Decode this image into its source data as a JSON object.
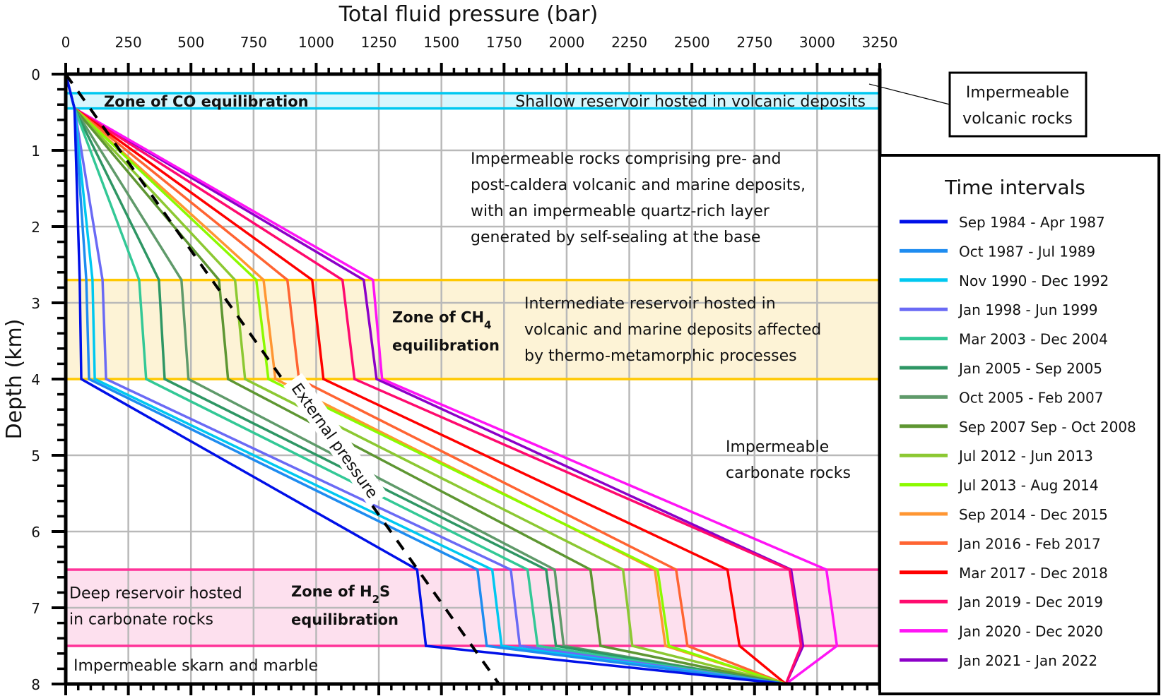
{
  "chart_data": {
    "type": "line",
    "title": "Total fluid pressure (bar)",
    "xlabel": "Total fluid pressure (bar)",
    "ylabel": "Depth (km)",
    "xlim": [
      0,
      3250
    ],
    "ylim": [
      0,
      8
    ],
    "y_inverted": true,
    "x_axis_position": "top",
    "grid": true,
    "x_ticks": [
      0,
      250,
      500,
      750,
      1000,
      1250,
      1500,
      1750,
      2000,
      2250,
      2500,
      2750,
      3000,
      3250
    ],
    "y_ticks": [
      0,
      1,
      2,
      3,
      4,
      5,
      6,
      7,
      8
    ],
    "zones": [
      {
        "name": "shallow",
        "from": 0.25,
        "to": 0.45,
        "color": "#00c8f0",
        "fill": "#d8f6fd",
        "label": "Zone of CO equilibration",
        "description": "Shallow reservoir hosted in volcanic deposits"
      },
      {
        "name": "intermediate",
        "from": 2.7,
        "to": 4.0,
        "color": "#ffc800",
        "fill": "#fdf3d6",
        "label_line1": "Zone of CH",
        "label_sub": "4",
        "label_line2": "equilibration",
        "description": [
          "Intermediate reservoir hosted in",
          "volcanic and marine deposits affected",
          "by thermo-metamorphic processes"
        ]
      },
      {
        "name": "deep",
        "from": 6.5,
        "to": 7.5,
        "color": "#ff3399",
        "fill": "#fde0ee",
        "label_line1": "Zone of H",
        "label_sub": "2",
        "label_line1_end": "S",
        "label_line2": "equilibration",
        "description": [
          "Deep reservoir hosted",
          "in carbonate rocks"
        ]
      }
    ],
    "annotations": {
      "impermeable_volcanic": [
        "Impermeable",
        "volcanic rocks"
      ],
      "impermeable_upper": [
        "Impermeable rocks comprising pre- and",
        "post-caldera volcanic and marine deposits,",
        "with an impermeable quartz-rich layer",
        "generated by self-sealing at the base"
      ],
      "impermeable_carbonate": [
        "Impermeable",
        "carbonate rocks"
      ],
      "impermeable_skarn": "Impermeable skarn and marble",
      "external_pressure": "External pressure"
    },
    "external_pressure": {
      "x": [
        0,
        1730
      ],
      "y": [
        0,
        8
      ]
    },
    "depths": [
      0,
      0.45,
      2.7,
      4.0,
      6.5,
      7.5,
      8.0
    ],
    "legend_title": "Time intervals",
    "legend_position": "right",
    "series": [
      {
        "name": "Sep 1984 - Apr 1987",
        "color": "#0010e8",
        "x": [
          0,
          35,
          56,
          62,
          1403,
          1438,
          2875
        ]
      },
      {
        "name": "Oct 1987 - Jul 1989",
        "color": "#1e8cf0",
        "x": [
          0,
          35,
          82,
          93,
          1644,
          1681,
          2875
        ]
      },
      {
        "name": "Nov 1990 - Dec 1992",
        "color": "#00c8f0",
        "x": [
          0,
          35,
          107,
          116,
          1703,
          1740,
          2875
        ]
      },
      {
        "name": "Jan 1998 - Jun 1999",
        "color": "#6a6af5",
        "x": [
          0,
          35,
          147,
          161,
          1777,
          1813,
          2875
        ]
      },
      {
        "name": "Mar 2003 - Dec 2004",
        "color": "#33c896",
        "x": [
          0,
          35,
          293,
          321,
          1844,
          1884,
          2875
        ]
      },
      {
        "name": "Jan 2005 - Sep 2005",
        "color": "#2e9664",
        "x": [
          0,
          35,
          372,
          395,
          1918,
          1957,
          2875
        ]
      },
      {
        "name": "Oct 2005 - Feb 2007",
        "color": "#5f9a6a",
        "x": [
          0,
          35,
          462,
          490,
          1952,
          1988,
          2875
        ]
      },
      {
        "name": "Sep 2007 Sep - Oct 2008",
        "color": "#5e9632",
        "x": [
          0,
          35,
          612,
          648,
          2095,
          2135,
          2875
        ]
      },
      {
        "name": "Jul 2012 - Jun 2013",
        "color": "#8cc832",
        "x": [
          0,
          35,
          676,
          716,
          2225,
          2262,
          2875
        ]
      },
      {
        "name": "Jul 2013 - Aug 2014",
        "color": "#8cfa00",
        "x": [
          0,
          35,
          761,
          809,
          2363,
          2408,
          2875
        ]
      },
      {
        "name": "Sep 2014 - Dec 2015",
        "color": "#ff9632",
        "x": [
          0,
          35,
          790,
          837,
          2352,
          2394,
          2875
        ]
      },
      {
        "name": "Jan 2016 - Feb 2017",
        "color": "#ff6432",
        "x": [
          0,
          35,
          885,
          931,
          2437,
          2482,
          2875
        ]
      },
      {
        "name": "Mar 2017 - Dec 2018",
        "color": "#ff0000",
        "x": [
          0,
          35,
          984,
          1029,
          2642,
          2690,
          2875
        ]
      },
      {
        "name": "Jan 2019 - Dec 2019",
        "color": "#ff0a6e",
        "x": [
          0,
          35,
          1105,
          1153,
          2890,
          2936,
          2875
        ]
      },
      {
        "name": "Jan 2020 - Dec 2020",
        "color": "#ff14f5",
        "x": [
          0,
          35,
          1227,
          1263,
          3037,
          3079,
          2875
        ]
      },
      {
        "name": "Jan 2021 - Jan 2022",
        "color": "#8c00c8",
        "x": [
          0,
          35,
          1190,
          1241,
          2896,
          2944,
          2875
        ]
      }
    ]
  }
}
